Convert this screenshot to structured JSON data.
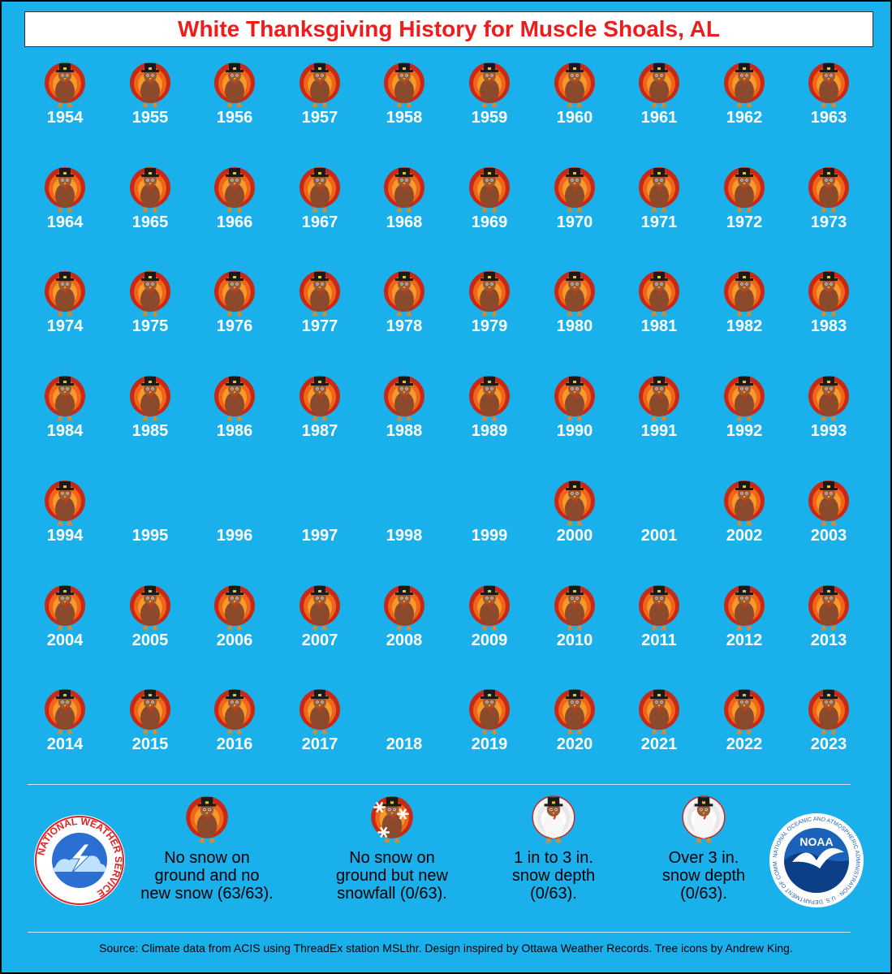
{
  "title": "White Thanksgiving History for Muscle Shoals, AL",
  "colors": {
    "background": "#19b0ec",
    "title_text": "#ee1c1c",
    "year_text": "#ffffff"
  },
  "years": [
    {
      "year": "1954",
      "icon": "turkey-no-snow"
    },
    {
      "year": "1955",
      "icon": "turkey-no-snow"
    },
    {
      "year": "1956",
      "icon": "turkey-no-snow"
    },
    {
      "year": "1957",
      "icon": "turkey-no-snow"
    },
    {
      "year": "1958",
      "icon": "turkey-no-snow"
    },
    {
      "year": "1959",
      "icon": "turkey-no-snow"
    },
    {
      "year": "1960",
      "icon": "turkey-no-snow"
    },
    {
      "year": "1961",
      "icon": "turkey-no-snow"
    },
    {
      "year": "1962",
      "icon": "turkey-no-snow"
    },
    {
      "year": "1963",
      "icon": "turkey-no-snow"
    },
    {
      "year": "1964",
      "icon": "turkey-no-snow"
    },
    {
      "year": "1965",
      "icon": "turkey-no-snow"
    },
    {
      "year": "1966",
      "icon": "turkey-no-snow"
    },
    {
      "year": "1967",
      "icon": "turkey-no-snow"
    },
    {
      "year": "1968",
      "icon": "turkey-no-snow"
    },
    {
      "year": "1969",
      "icon": "turkey-no-snow"
    },
    {
      "year": "1970",
      "icon": "turkey-no-snow"
    },
    {
      "year": "1971",
      "icon": "turkey-no-snow"
    },
    {
      "year": "1972",
      "icon": "turkey-no-snow"
    },
    {
      "year": "1973",
      "icon": "turkey-no-snow"
    },
    {
      "year": "1974",
      "icon": "turkey-no-snow"
    },
    {
      "year": "1975",
      "icon": "turkey-no-snow"
    },
    {
      "year": "1976",
      "icon": "turkey-no-snow"
    },
    {
      "year": "1977",
      "icon": "turkey-no-snow"
    },
    {
      "year": "1978",
      "icon": "turkey-no-snow"
    },
    {
      "year": "1979",
      "icon": "turkey-no-snow"
    },
    {
      "year": "1980",
      "icon": "turkey-no-snow"
    },
    {
      "year": "1981",
      "icon": "turkey-no-snow"
    },
    {
      "year": "1982",
      "icon": "turkey-no-snow"
    },
    {
      "year": "1983",
      "icon": "turkey-no-snow"
    },
    {
      "year": "1984",
      "icon": "turkey-no-snow"
    },
    {
      "year": "1985",
      "icon": "turkey-no-snow"
    },
    {
      "year": "1986",
      "icon": "turkey-no-snow"
    },
    {
      "year": "1987",
      "icon": "turkey-no-snow"
    },
    {
      "year": "1988",
      "icon": "turkey-no-snow"
    },
    {
      "year": "1989",
      "icon": "turkey-no-snow"
    },
    {
      "year": "1990",
      "icon": "turkey-no-snow"
    },
    {
      "year": "1991",
      "icon": "turkey-no-snow"
    },
    {
      "year": "1992",
      "icon": "turkey-no-snow"
    },
    {
      "year": "1993",
      "icon": "turkey-no-snow"
    },
    {
      "year": "1994",
      "icon": "turkey-no-snow"
    },
    {
      "year": "1995",
      "icon": "none"
    },
    {
      "year": "1996",
      "icon": "none"
    },
    {
      "year": "1997",
      "icon": "none"
    },
    {
      "year": "1998",
      "icon": "none"
    },
    {
      "year": "1999",
      "icon": "none"
    },
    {
      "year": "2000",
      "icon": "turkey-no-snow"
    },
    {
      "year": "2001",
      "icon": "none"
    },
    {
      "year": "2002",
      "icon": "turkey-no-snow"
    },
    {
      "year": "2003",
      "icon": "turkey-no-snow"
    },
    {
      "year": "2004",
      "icon": "turkey-no-snow"
    },
    {
      "year": "2005",
      "icon": "turkey-no-snow"
    },
    {
      "year": "2006",
      "icon": "turkey-no-snow"
    },
    {
      "year": "2007",
      "icon": "turkey-no-snow"
    },
    {
      "year": "2008",
      "icon": "turkey-no-snow"
    },
    {
      "year": "2009",
      "icon": "turkey-no-snow"
    },
    {
      "year": "2010",
      "icon": "turkey-no-snow"
    },
    {
      "year": "2011",
      "icon": "turkey-no-snow"
    },
    {
      "year": "2012",
      "icon": "turkey-no-snow"
    },
    {
      "year": "2013",
      "icon": "turkey-no-snow"
    },
    {
      "year": "2014",
      "icon": "turkey-no-snow"
    },
    {
      "year": "2015",
      "icon": "turkey-no-snow"
    },
    {
      "year": "2016",
      "icon": "turkey-no-snow"
    },
    {
      "year": "2017",
      "icon": "turkey-no-snow"
    },
    {
      "year": "2018",
      "icon": "none"
    },
    {
      "year": "2019",
      "icon": "turkey-no-snow"
    },
    {
      "year": "2020",
      "icon": "turkey-no-snow"
    },
    {
      "year": "2021",
      "icon": "turkey-no-snow"
    },
    {
      "year": "2022",
      "icon": "turkey-no-snow"
    },
    {
      "year": "2023",
      "icon": "turkey-no-snow"
    }
  ],
  "legend": [
    {
      "icon": "turkey-no-snow-icon",
      "lines": [
        "No snow on",
        "ground and no",
        "new snow (63/63)."
      ]
    },
    {
      "icon": "turkey-new-snowfall-icon",
      "lines": [
        "No snow on",
        "ground but new",
        "snowfall (0/63)."
      ]
    },
    {
      "icon": "turkey-light-snow-depth-icon",
      "lines": [
        "1 in to 3 in.",
        "snow depth",
        "(0/63)."
      ]
    },
    {
      "icon": "turkey-deep-snow-depth-icon",
      "lines": [
        "Over 3 in.",
        "snow depth",
        "(0/63)."
      ]
    }
  ],
  "logos": {
    "nws": {
      "icon": "nws-logo-icon",
      "ring_text": "NATIONAL WEATHER SERVICE"
    },
    "noaa": {
      "icon": "noaa-logo-icon",
      "center_text": "NOAA",
      "ring_text": "NATIONAL OCEANIC AND ATMOSPHERIC ADMINISTRATION · U.S. DEPARTMENT OF COMMERCE"
    }
  },
  "source": "Source: Climate data from ACIS using ThreadEx station MSLthr. Design inspired by Ottawa Weather Records. Tree icons by Andrew King."
}
